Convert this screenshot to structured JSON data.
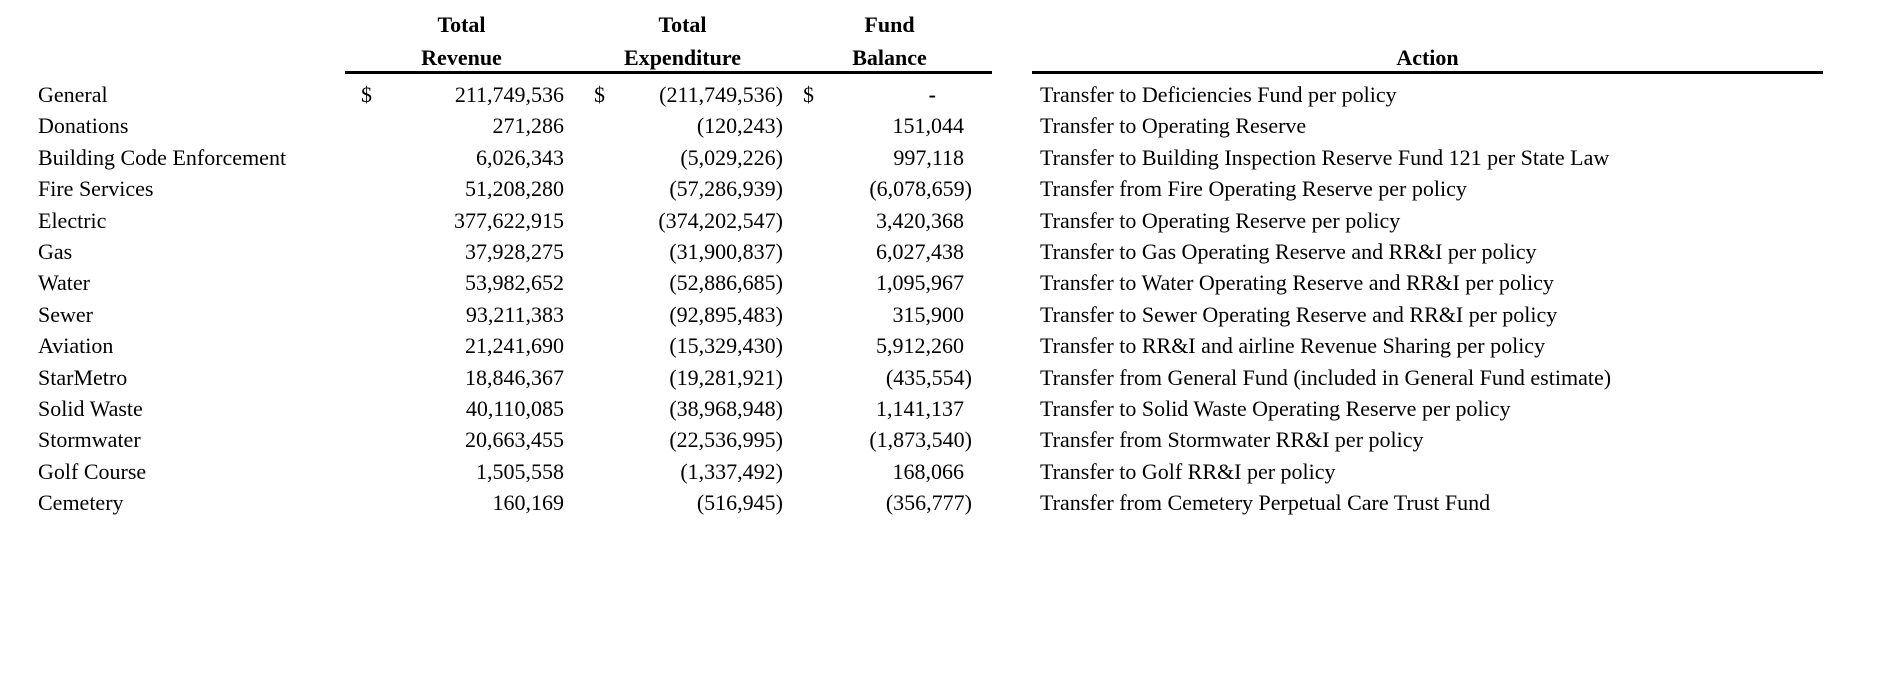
{
  "colors": {
    "background": "#ffffff",
    "text": "#000000",
    "rule": "#000000"
  },
  "table": {
    "columns": {
      "fund": {
        "line1": "",
        "line2": ""
      },
      "revenue": {
        "line1": "Total",
        "line2": "Revenue"
      },
      "expenditure": {
        "line1": "Total",
        "line2": "Expenditure"
      },
      "balance": {
        "line1": "Fund",
        "line2": "Balance"
      },
      "action": {
        "label": "Action"
      }
    },
    "rows": [
      {
        "fund": "General",
        "revenue_prefix": "$",
        "revenue": "211,749,536",
        "expenditure_prefix": "$",
        "expenditure": "(211,749,536)",
        "balance_prefix": "$",
        "balance": "-",
        "action": "Transfer to Deficiencies Fund per policy"
      },
      {
        "fund": "Donations",
        "revenue_prefix": "",
        "revenue": "271,286",
        "expenditure_prefix": "",
        "expenditure": "(120,243)",
        "balance_prefix": "",
        "balance": "151,044",
        "action": "Transfer to Operating Reserve"
      },
      {
        "fund": "Building Code Enforcement",
        "revenue_prefix": "",
        "revenue": "6,026,343",
        "expenditure_prefix": "",
        "expenditure": "(5,029,226)",
        "balance_prefix": "",
        "balance": "997,118",
        "action": "Transfer to Building Inspection Reserve Fund 121 per State Law"
      },
      {
        "fund": "Fire Services",
        "revenue_prefix": "",
        "revenue": "51,208,280",
        "expenditure_prefix": "",
        "expenditure": "(57,286,939)",
        "balance_prefix": "",
        "balance": "(6,078,659)",
        "action": "Transfer from Fire Operating Reserve per policy"
      },
      {
        "fund": "Electric",
        "revenue_prefix": "",
        "revenue": "377,622,915",
        "expenditure_prefix": "",
        "expenditure": "(374,202,547)",
        "balance_prefix": "",
        "balance": "3,420,368",
        "action": "Transfer to Operating Reserve per policy"
      },
      {
        "fund": "Gas",
        "revenue_prefix": "",
        "revenue": "37,928,275",
        "expenditure_prefix": "",
        "expenditure": "(31,900,837)",
        "balance_prefix": "",
        "balance": "6,027,438",
        "action": "Transfer to Gas Operating Reserve and RR&I per policy"
      },
      {
        "fund": "Water",
        "revenue_prefix": "",
        "revenue": "53,982,652",
        "expenditure_prefix": "",
        "expenditure": "(52,886,685)",
        "balance_prefix": "",
        "balance": "1,095,967",
        "action": "Transfer to Water Operating Reserve and RR&I per policy"
      },
      {
        "fund": "Sewer",
        "revenue_prefix": "",
        "revenue": "93,211,383",
        "expenditure_prefix": "",
        "expenditure": "(92,895,483)",
        "balance_prefix": "",
        "balance": "315,900",
        "action": "Transfer to Sewer Operating Reserve and RR&I per policy"
      },
      {
        "fund": "Aviation",
        "revenue_prefix": "",
        "revenue": "21,241,690",
        "expenditure_prefix": "",
        "expenditure": "(15,329,430)",
        "balance_prefix": "",
        "balance": "5,912,260",
        "action": "Transfer to RR&I and airline Revenue Sharing per policy"
      },
      {
        "fund": "StarMetro",
        "revenue_prefix": "",
        "revenue": "18,846,367",
        "expenditure_prefix": "",
        "expenditure": "(19,281,921)",
        "balance_prefix": "",
        "balance": "(435,554)",
        "action": "Transfer from General Fund (included in General Fund estimate)"
      },
      {
        "fund": "Solid Waste",
        "revenue_prefix": "",
        "revenue": "40,110,085",
        "expenditure_prefix": "",
        "expenditure": "(38,968,948)",
        "balance_prefix": "",
        "balance": "1,141,137",
        "action": "Transfer to Solid Waste Operating Reserve per policy"
      },
      {
        "fund": "Stormwater",
        "revenue_prefix": "",
        "revenue": "20,663,455",
        "expenditure_prefix": "",
        "expenditure": "(22,536,995)",
        "balance_prefix": "",
        "balance": "(1,873,540)",
        "action": "Transfer from Stormwater RR&I per policy"
      },
      {
        "fund": "Golf Course",
        "revenue_prefix": "",
        "revenue": "1,505,558",
        "expenditure_prefix": "",
        "expenditure": "(1,337,492)",
        "balance_prefix": "",
        "balance": "168,066",
        "action": "Transfer to Golf RR&I per policy"
      },
      {
        "fund": "Cemetery",
        "revenue_prefix": "",
        "revenue": "160,169",
        "expenditure_prefix": "",
        "expenditure": "(516,945)",
        "balance_prefix": "",
        "balance": "(356,777)",
        "action": "Transfer from Cemetery Perpetual Care Trust Fund"
      }
    ]
  }
}
